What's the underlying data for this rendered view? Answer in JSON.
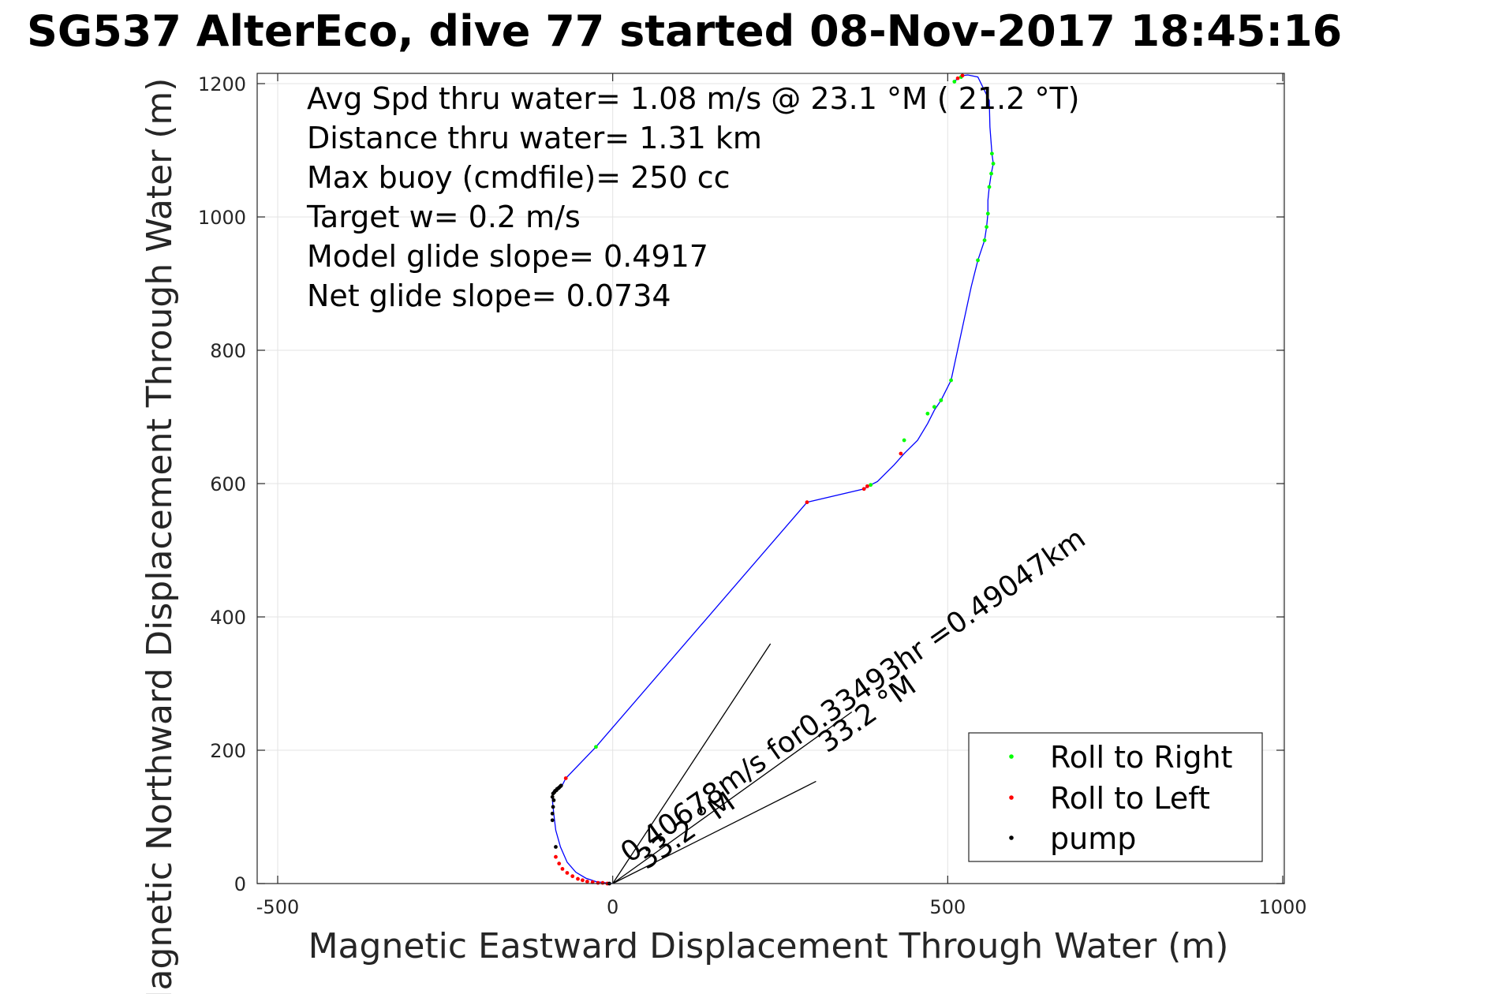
{
  "chart_data": {
    "type": "line",
    "title": "SG537 AlterEco, dive 77 started 08-Nov-2017 18:45:16",
    "xlabel": "Magnetic Eastward Displacement Through Water (m)",
    "ylabel": "Magnetic Northward Displacement Through Water (m)",
    "xlim": [
      -500,
      1000
    ],
    "ylim": [
      0,
      1200
    ],
    "xticks": [
      -500,
      0,
      500,
      1000
    ],
    "yticks": [
      0,
      200,
      400,
      600,
      800,
      1000,
      1200
    ],
    "xtick_labels": [
      "-500",
      "0",
      "500",
      "1000"
    ],
    "ytick_labels": [
      "0",
      "200",
      "400",
      "600",
      "800",
      "1000",
      "1200"
    ],
    "grid": true,
    "track_color": "#0000ff",
    "track": {
      "x": [
        0,
        -10,
        -25,
        -40,
        -55,
        -68,
        -78,
        -85,
        -88,
        -90,
        -90,
        -89,
        -87,
        -84,
        -81,
        -78,
        -75,
        -70,
        -25,
        290,
        375,
        385,
        395,
        420,
        435,
        455,
        470,
        480,
        490,
        505,
        520,
        535,
        545,
        555,
        558,
        560,
        560,
        562,
        565,
        568,
        566,
        563,
        562,
        545,
        530,
        522,
        515,
        510
      ],
      "y": [
        0,
        1,
        3,
        8,
        17,
        32,
        55,
        80,
        105,
        125,
        135,
        138,
        140,
        142,
        144,
        146,
        148,
        158,
        205,
        572,
        592,
        598,
        603,
        628,
        645,
        665,
        690,
        710,
        725,
        755,
        825,
        895,
        935,
        965,
        985,
        1005,
        1025,
        1045,
        1065,
        1080,
        1095,
        1135,
        1175,
        1210,
        1213,
        1212,
        1208,
        1203
      ]
    },
    "series": [
      {
        "name": "Roll to Right",
        "color": "#00ff00",
        "x": [
          -25,
          385,
          435,
          470,
          480,
          490,
          505,
          545,
          555,
          558,
          560,
          562,
          565,
          568,
          566,
          520,
          510
        ],
        "y": [
          205,
          598,
          665,
          705,
          715,
          725,
          755,
          935,
          965,
          985,
          1005,
          1045,
          1065,
          1080,
          1095,
          1210,
          1203
        ]
      },
      {
        "name": "Roll to Left",
        "color": "#ff0000",
        "x": [
          -70,
          290,
          375,
          380,
          430,
          515,
          522,
          -85,
          -80,
          -75,
          -68,
          -60,
          -52,
          -45,
          -38,
          -30,
          -22,
          -15,
          -8
        ],
        "y": [
          158,
          572,
          592,
          596,
          645,
          1208,
          1212,
          40,
          30,
          22,
          16,
          11,
          7,
          5,
          3,
          2,
          1,
          1,
          0
        ]
      },
      {
        "name": "pump",
        "color": "#000000",
        "x": [
          -90,
          -90,
          -89,
          -88,
          -90,
          -89,
          -87,
          -86,
          -84,
          -83,
          -81,
          -80,
          -78,
          -77,
          -85,
          -5
        ],
        "y": [
          95,
          105,
          115,
          125,
          130,
          135,
          137,
          139,
          140,
          142,
          143,
          144,
          146,
          147,
          55,
          0
        ]
      }
    ],
    "bearing_lines": [
      {
        "heading_deg": 33.2,
        "length_m": 430
      },
      {
        "heading_deg": 54.2,
        "length_m": 440
      },
      {
        "heading_deg": 63.2,
        "length_m": 340
      }
    ],
    "annotations": [
      {
        "text": "Avg Spd thru water=  1.08 m/s @  23.1 °M ( 21.2 °T)"
      },
      {
        "text": "Distance thru water=  1.31 km"
      },
      {
        "text": "Max buoy (cmdfile)= 250 cc"
      },
      {
        "text": "Target w= 0.2 m/s"
      },
      {
        "text": "Model glide slope= 0.4917"
      },
      {
        "text": "Net glide slope= 0.0734"
      }
    ],
    "line_labels": [
      {
        "text": "0.40678m/s for0.33493hr =0.49047km",
        "x": 25,
        "y": 30,
        "angle_deg": 35
      },
      {
        "text": "33.2 °M",
        "x": 50,
        "y": 20,
        "angle_deg": 35
      },
      {
        "text": "33.2 °M",
        "x": 320,
        "y": 195,
        "angle_deg": 35
      }
    ],
    "legend": {
      "position": "bottom-right",
      "entries": [
        "Roll to Right",
        "Roll to Left",
        "pump"
      ]
    }
  }
}
